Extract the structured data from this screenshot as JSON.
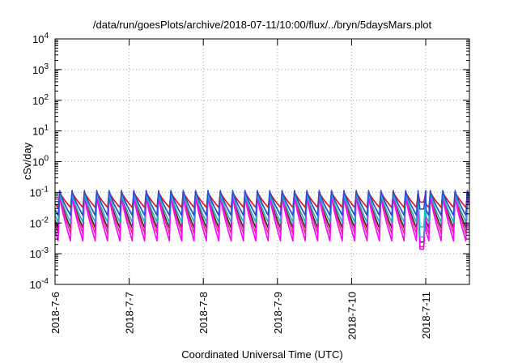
{
  "chart_data": {
    "type": "line",
    "title": "/data/run/goesPlots/archive/2018-07-11/10:00/flux/../bryn/5daysMars.plot",
    "xlabel": "Coordinated Universal Time (UTC)",
    "ylabel": "cSv/day",
    "y_scale": "log",
    "ylim": [
      0.0001,
      10000
    ],
    "x_range": [
      "2018-07-06 00:00",
      "2018-07-11 11:30"
    ],
    "y_ticks": [
      {
        "base": "10",
        "exp": "-4"
      },
      {
        "base": "10",
        "exp": "-3"
      },
      {
        "base": "10",
        "exp": "-2"
      },
      {
        "base": "10",
        "exp": "-1"
      },
      {
        "base": "10",
        "exp": "0"
      },
      {
        "base": "10",
        "exp": "1"
      },
      {
        "base": "10",
        "exp": "2"
      },
      {
        "base": "10",
        "exp": "3"
      },
      {
        "base": "10",
        "exp": "4"
      }
    ],
    "x_ticks": [
      "2018-7-6",
      "2018-7-7",
      "2018-7-8",
      "2018-7-9",
      "2018-7-10",
      "2018-7-11"
    ],
    "grid": true,
    "legend": "none",
    "pattern": {
      "cycle_hours": 4,
      "first_peak_hour": 1.5,
      "eclipse_start_hour": 117.5,
      "eclipse_end_hour": 120
    },
    "series": [
      {
        "color": "#e40b0b",
        "peak": 0.105,
        "trough": 0.032,
        "eclipse_min": 0.048
      },
      {
        "color": "#2f2f2f",
        "peak": 0.085,
        "trough": 0.0068,
        "eclipse_min": 0.0024
      },
      {
        "color": "#e7317c",
        "peak": 0.09,
        "trough": 0.0045,
        "eclipse_min": 0.0017
      },
      {
        "color": "#ff00ff",
        "peak": 0.078,
        "trough": 0.0026,
        "eclipse_min": 0.0014
      },
      {
        "color": "#2aa8c4",
        "peak": 0.095,
        "trough": 0.0105,
        "eclipse_min": 0.0035
      },
      {
        "color": "#13c9c9",
        "peak": 0.1,
        "trough": 0.0185,
        "eclipse_min": 0.0075
      },
      {
        "color": "#2b4bd8",
        "peak": 0.115,
        "trough": 0.0175,
        "eclipse_min": 0.0285
      }
    ]
  }
}
